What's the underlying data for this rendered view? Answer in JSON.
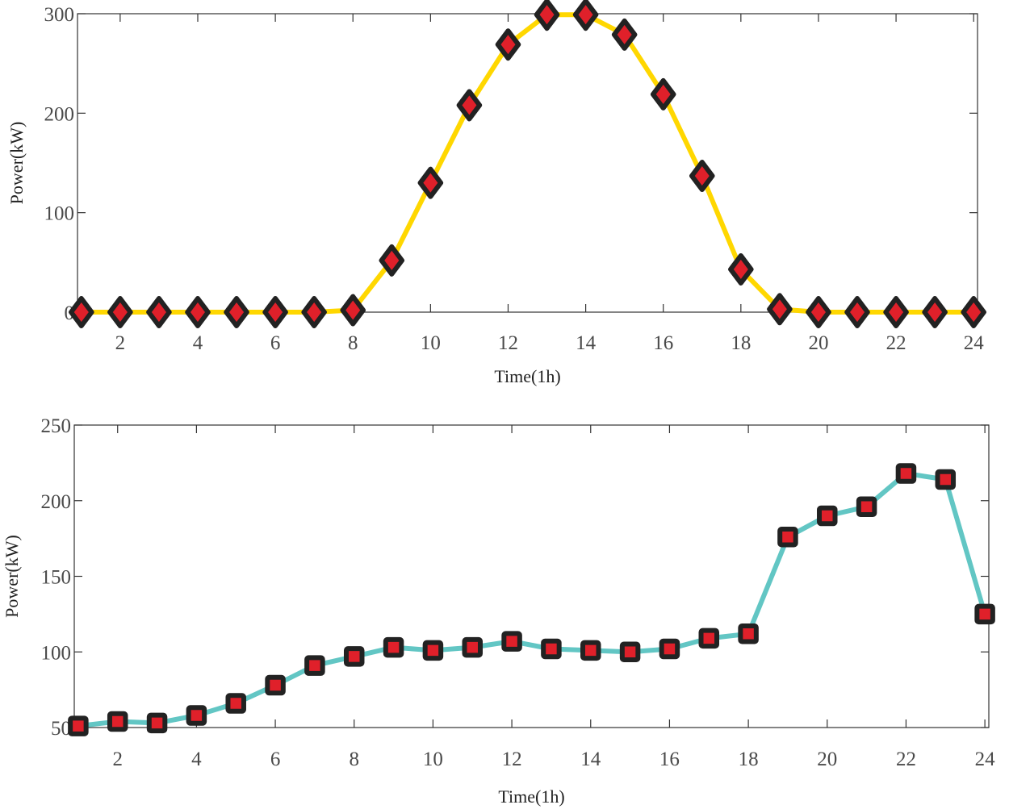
{
  "chart_data": [
    {
      "type": "line",
      "xlabel": "Time(1h)",
      "ylabel": "Power(kW)",
      "xlim": [
        0.9,
        24.1
      ],
      "ylim": [
        0,
        300
      ],
      "xticks": [
        2,
        4,
        6,
        8,
        10,
        12,
        14,
        16,
        18,
        20,
        22,
        24
      ],
      "yticks": [
        0,
        100,
        200,
        300
      ],
      "x": [
        1,
        2,
        3,
        4,
        5,
        6,
        7,
        8,
        9,
        10,
        11,
        12,
        13,
        14,
        15,
        16,
        17,
        18,
        19,
        20,
        21,
        22,
        23,
        24
      ],
      "series": [
        {
          "values": [
            0,
            0,
            0,
            0,
            0,
            0,
            0,
            2,
            52,
            130,
            208,
            269,
            299,
            299,
            279,
            219,
            137,
            43,
            3,
            0,
            0,
            0,
            0,
            0
          ],
          "line_color": "#FFD700",
          "marker": "diamond",
          "marker_edge_color": "#222222",
          "marker_face_color": "#E0202A"
        }
      ],
      "grid": false
    },
    {
      "type": "line",
      "xlabel": "Time(1h)",
      "ylabel": "Power(kW)",
      "xlim": [
        0.9,
        24.1
      ],
      "ylim": [
        50,
        250
      ],
      "xticks": [
        2,
        4,
        6,
        8,
        10,
        12,
        14,
        16,
        18,
        20,
        22,
        24
      ],
      "yticks": [
        50,
        100,
        150,
        200,
        250
      ],
      "x": [
        1,
        2,
        3,
        4,
        5,
        6,
        7,
        8,
        9,
        10,
        11,
        12,
        13,
        14,
        15,
        16,
        17,
        18,
        19,
        20,
        21,
        22,
        23,
        24
      ],
      "series": [
        {
          "values": [
            51,
            54,
            53,
            58,
            66,
            78,
            91,
            97,
            103,
            101,
            103,
            107,
            102,
            101,
            100,
            102,
            109,
            112,
            176,
            190,
            196,
            218,
            214,
            125
          ],
          "line_color": "#62C6C4",
          "marker": "square",
          "marker_edge_color": "#222222",
          "marker_face_color": "#E0202A"
        }
      ],
      "grid": false
    }
  ]
}
